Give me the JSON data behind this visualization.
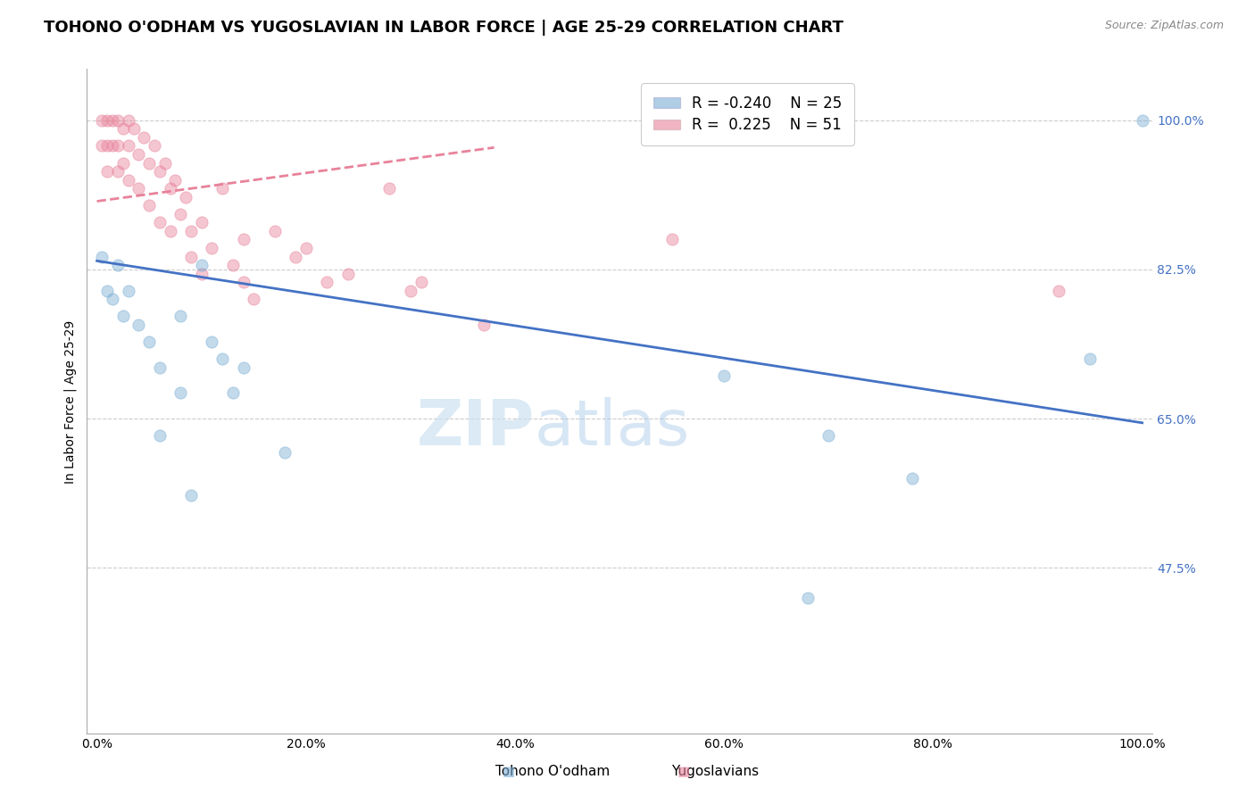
{
  "title": "TOHONO O'ODHAM VS YUGOSLAVIAN IN LABOR FORCE | AGE 25-29 CORRELATION CHART",
  "source": "Source: ZipAtlas.com",
  "ylabel": "In Labor Force | Age 25-29",
  "watermark_zip": "ZIP",
  "watermark_atlas": "atlas",
  "xlim": [
    -0.01,
    1.01
  ],
  "ylim": [
    0.28,
    1.06
  ],
  "yticks": [
    0.475,
    0.65,
    0.825,
    1.0
  ],
  "ytick_labels": [
    "47.5%",
    "65.0%",
    "82.5%",
    "100.0%"
  ],
  "xticks": [
    0.0,
    0.2,
    0.4,
    0.6,
    0.8,
    1.0
  ],
  "xtick_labels": [
    "0.0%",
    "20.0%",
    "40.0%",
    "60.0%",
    "80.0%",
    "100.0%"
  ],
  "blue_color": "#7aadd4",
  "pink_color": "#e8829a",
  "blue_r": -0.24,
  "blue_n": 25,
  "pink_r": 0.225,
  "pink_n": 51,
  "blue_label": "Tohono O'odham",
  "pink_label": "Yugoslavians",
  "blue_scatter_x": [
    0.005,
    0.01,
    0.015,
    0.02,
    0.025,
    0.03,
    0.04,
    0.05,
    0.06,
    0.08,
    0.1,
    0.12,
    0.14,
    0.06,
    0.08,
    0.09,
    0.11,
    0.13,
    0.18,
    0.6,
    0.7,
    0.78,
    0.95,
    0.68,
    1.0
  ],
  "blue_scatter_y": [
    0.84,
    0.8,
    0.79,
    0.83,
    0.77,
    0.8,
    0.76,
    0.74,
    0.71,
    0.77,
    0.83,
    0.72,
    0.71,
    0.63,
    0.68,
    0.56,
    0.74,
    0.68,
    0.61,
    0.7,
    0.63,
    0.58,
    0.72,
    0.44,
    1.0
  ],
  "pink_scatter_x": [
    0.005,
    0.005,
    0.01,
    0.01,
    0.01,
    0.015,
    0.015,
    0.02,
    0.02,
    0.02,
    0.025,
    0.025,
    0.03,
    0.03,
    0.03,
    0.035,
    0.04,
    0.04,
    0.045,
    0.05,
    0.05,
    0.055,
    0.06,
    0.06,
    0.065,
    0.07,
    0.07,
    0.075,
    0.08,
    0.085,
    0.09,
    0.09,
    0.1,
    0.1,
    0.11,
    0.12,
    0.13,
    0.14,
    0.15,
    0.17,
    0.19,
    0.22,
    0.24,
    0.28,
    0.31,
    0.37,
    0.14,
    0.2,
    0.3,
    0.55,
    0.92
  ],
  "pink_scatter_y": [
    1.0,
    0.97,
    1.0,
    0.97,
    0.94,
    1.0,
    0.97,
    1.0,
    0.97,
    0.94,
    0.99,
    0.95,
    1.0,
    0.97,
    0.93,
    0.99,
    0.96,
    0.92,
    0.98,
    0.95,
    0.9,
    0.97,
    0.94,
    0.88,
    0.95,
    0.92,
    0.87,
    0.93,
    0.89,
    0.91,
    0.87,
    0.84,
    0.88,
    0.82,
    0.85,
    0.92,
    0.83,
    0.81,
    0.79,
    0.87,
    0.84,
    0.81,
    0.82,
    0.92,
    0.81,
    0.76,
    0.86,
    0.85,
    0.8,
    0.86,
    0.8
  ],
  "blue_line_x0": 0.0,
  "blue_line_y0": 0.835,
  "blue_line_x1": 1.0,
  "blue_line_y1": 0.645,
  "pink_line_x0": 0.0,
  "pink_line_y0": 0.905,
  "pink_line_x1": 0.38,
  "pink_line_y1": 0.968,
  "background_color": "#ffffff",
  "grid_color": "#cccccc",
  "title_fontsize": 13,
  "axis_fontsize": 10,
  "tick_fontsize": 10,
  "legend_fontsize": 12,
  "source_fontsize": 9,
  "marker_size": 90
}
